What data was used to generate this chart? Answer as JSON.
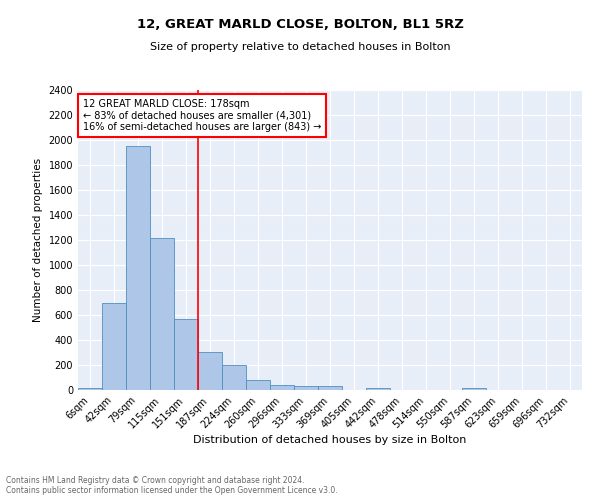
{
  "title1": "12, GREAT MARLD CLOSE, BOLTON, BL1 5RZ",
  "title2": "Size of property relative to detached houses in Bolton",
  "xlabel": "Distribution of detached houses by size in Bolton",
  "ylabel": "Number of detached properties",
  "bin_labels": [
    "6sqm",
    "42sqm",
    "79sqm",
    "115sqm",
    "151sqm",
    "187sqm",
    "224sqm",
    "260sqm",
    "296sqm",
    "333sqm",
    "369sqm",
    "405sqm",
    "442sqm",
    "478sqm",
    "514sqm",
    "550sqm",
    "587sqm",
    "623sqm",
    "659sqm",
    "696sqm",
    "732sqm"
  ],
  "bar_values": [
    20,
    700,
    1950,
    1220,
    570,
    305,
    200,
    80,
    40,
    35,
    35,
    0,
    20,
    0,
    0,
    0,
    20,
    0,
    0,
    0,
    0
  ],
  "bar_color": "#aec6e8",
  "bar_edge_color": "#4f8fc0",
  "vline_index": 5,
  "vline_color": "red",
  "annotation_text": "12 GREAT MARLD CLOSE: 178sqm\n← 83% of detached houses are smaller (4,301)\n16% of semi-detached houses are larger (843) →",
  "annotation_box_color": "white",
  "annotation_box_edge": "red",
  "ylim": [
    0,
    2400
  ],
  "yticks": [
    0,
    200,
    400,
    600,
    800,
    1000,
    1200,
    1400,
    1600,
    1800,
    2000,
    2200,
    2400
  ],
  "footer": "Contains HM Land Registry data © Crown copyright and database right 2024.\nContains public sector information licensed under the Open Government Licence v3.0.",
  "background_color": "#e8eef8",
  "grid_color": "white"
}
